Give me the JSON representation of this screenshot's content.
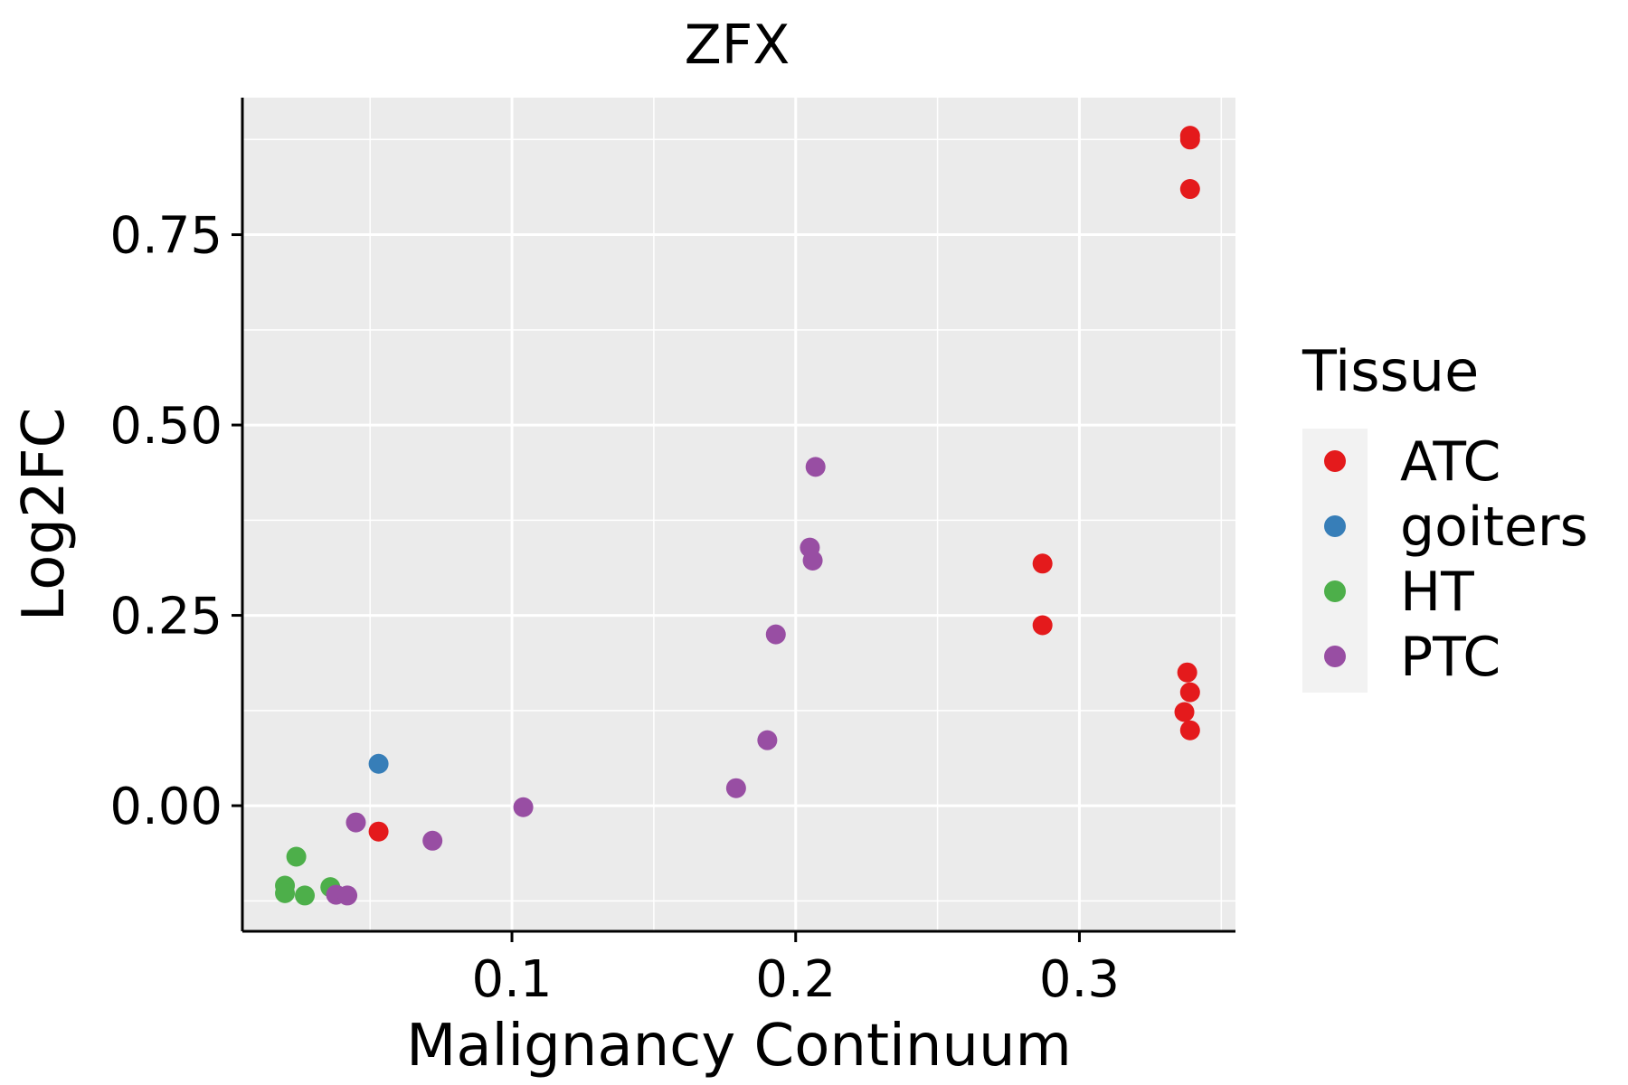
{
  "chart_data": {
    "type": "scatter",
    "title": "ZFX",
    "xlabel": "Malignancy Continuum",
    "ylabel": "Log2FC",
    "xlim": [
      0.005,
      0.355
    ],
    "ylim": [
      -0.165,
      0.93
    ],
    "x_ticks": [
      0.1,
      0.2,
      0.3
    ],
    "x_tick_labels": [
      "0.1",
      "0.2",
      "0.3"
    ],
    "y_ticks": [
      0.0,
      0.25,
      0.5,
      0.75
    ],
    "y_tick_labels": [
      "0.00",
      "0.25",
      "0.50",
      "0.75"
    ],
    "grid": true,
    "legend": {
      "title": "Tissue",
      "position": "right",
      "entries": [
        {
          "name": "ATC",
          "color": "#E41A1C"
        },
        {
          "name": "goiters",
          "color": "#377EB8"
        },
        {
          "name": "HT",
          "color": "#4DAF4A"
        },
        {
          "name": "PTC",
          "color": "#984EA3"
        }
      ]
    },
    "series": [
      {
        "name": "ATC",
        "color": "#E41A1C",
        "points": [
          {
            "x": 0.339,
            "y": 0.88
          },
          {
            "x": 0.339,
            "y": 0.875
          },
          {
            "x": 0.339,
            "y": 0.81
          },
          {
            "x": 0.287,
            "y": 0.318
          },
          {
            "x": 0.287,
            "y": 0.237
          },
          {
            "x": 0.338,
            "y": 0.175
          },
          {
            "x": 0.339,
            "y": 0.149
          },
          {
            "x": 0.337,
            "y": 0.123
          },
          {
            "x": 0.339,
            "y": 0.099
          },
          {
            "x": 0.053,
            "y": -0.034
          }
        ]
      },
      {
        "name": "goiters",
        "color": "#377EB8",
        "points": [
          {
            "x": 0.053,
            "y": 0.055
          }
        ]
      },
      {
        "name": "HT",
        "color": "#4DAF4A",
        "points": [
          {
            "x": 0.024,
            "y": -0.067
          },
          {
            "x": 0.02,
            "y": -0.105
          },
          {
            "x": 0.02,
            "y": -0.115
          },
          {
            "x": 0.036,
            "y": -0.107
          },
          {
            "x": 0.027,
            "y": -0.118
          }
        ]
      },
      {
        "name": "PTC",
        "color": "#984EA3",
        "points": [
          {
            "x": 0.207,
            "y": 0.445
          },
          {
            "x": 0.205,
            "y": 0.339
          },
          {
            "x": 0.206,
            "y": 0.322
          },
          {
            "x": 0.193,
            "y": 0.225
          },
          {
            "x": 0.19,
            "y": 0.086
          },
          {
            "x": 0.179,
            "y": 0.023
          },
          {
            "x": 0.104,
            "y": -0.002
          },
          {
            "x": 0.045,
            "y": -0.022
          },
          {
            "x": 0.072,
            "y": -0.046
          },
          {
            "x": 0.038,
            "y": -0.117
          },
          {
            "x": 0.042,
            "y": -0.118
          }
        ]
      }
    ]
  }
}
